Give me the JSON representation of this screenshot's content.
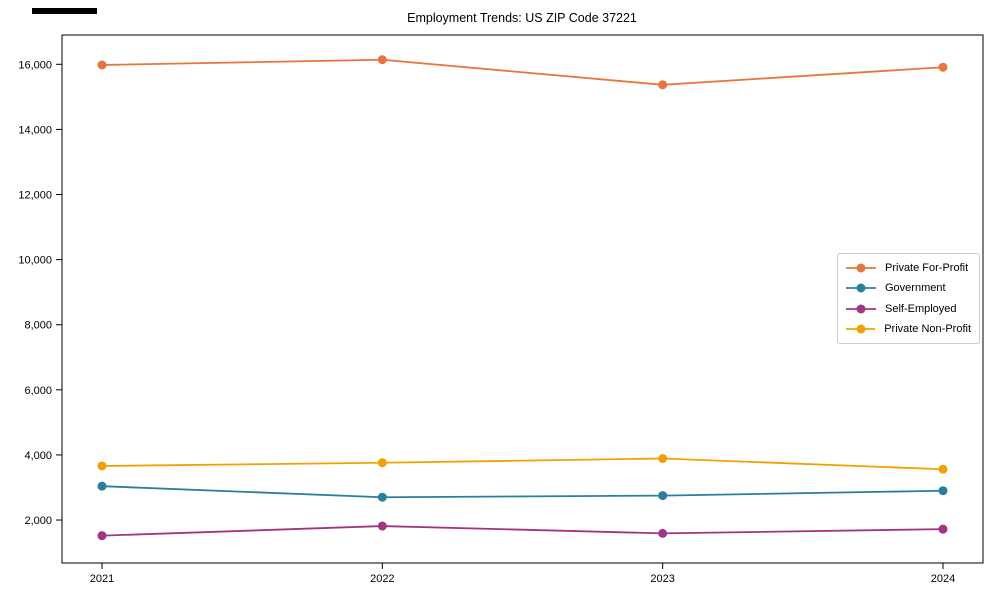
{
  "title": "Employment Trends: US ZIP Code 37221",
  "chart_data": {
    "type": "line",
    "title": "Employment Trends: US ZIP Code 37221",
    "x": [
      2021,
      2022,
      2023,
      2024
    ],
    "xtick_labels": [
      "2021",
      "2022",
      "2023",
      "2024"
    ],
    "series": [
      {
        "name": "Private For-Profit",
        "color": "#e8763c",
        "values": [
          15980,
          16140,
          15370,
          15910
        ]
      },
      {
        "name": "Government",
        "color": "#2a7f9e",
        "values": [
          3040,
          2700,
          2750,
          2900
        ]
      },
      {
        "name": "Self-Employed",
        "color": "#a23582",
        "values": [
          1520,
          1815,
          1590,
          1720
        ]
      },
      {
        "name": "Private Non-Profit",
        "color": "#f2a104",
        "values": [
          3660,
          3760,
          3890,
          3560
        ]
      }
    ],
    "yticks": [
      2000,
      4000,
      6000,
      8000,
      10000,
      12000,
      14000,
      16000
    ],
    "ytick_labels": [
      "2,000",
      "4,000",
      "6,000",
      "8,000",
      "10,000",
      "12,000",
      "14,000",
      "16,000"
    ],
    "ylim": [
      680,
      16900
    ],
    "xlabel": "",
    "ylabel": "",
    "grid": false,
    "marker": "circle",
    "legend_position": "center right",
    "axis_color": "#000000",
    "legend_border_color": "#cccccc"
  }
}
